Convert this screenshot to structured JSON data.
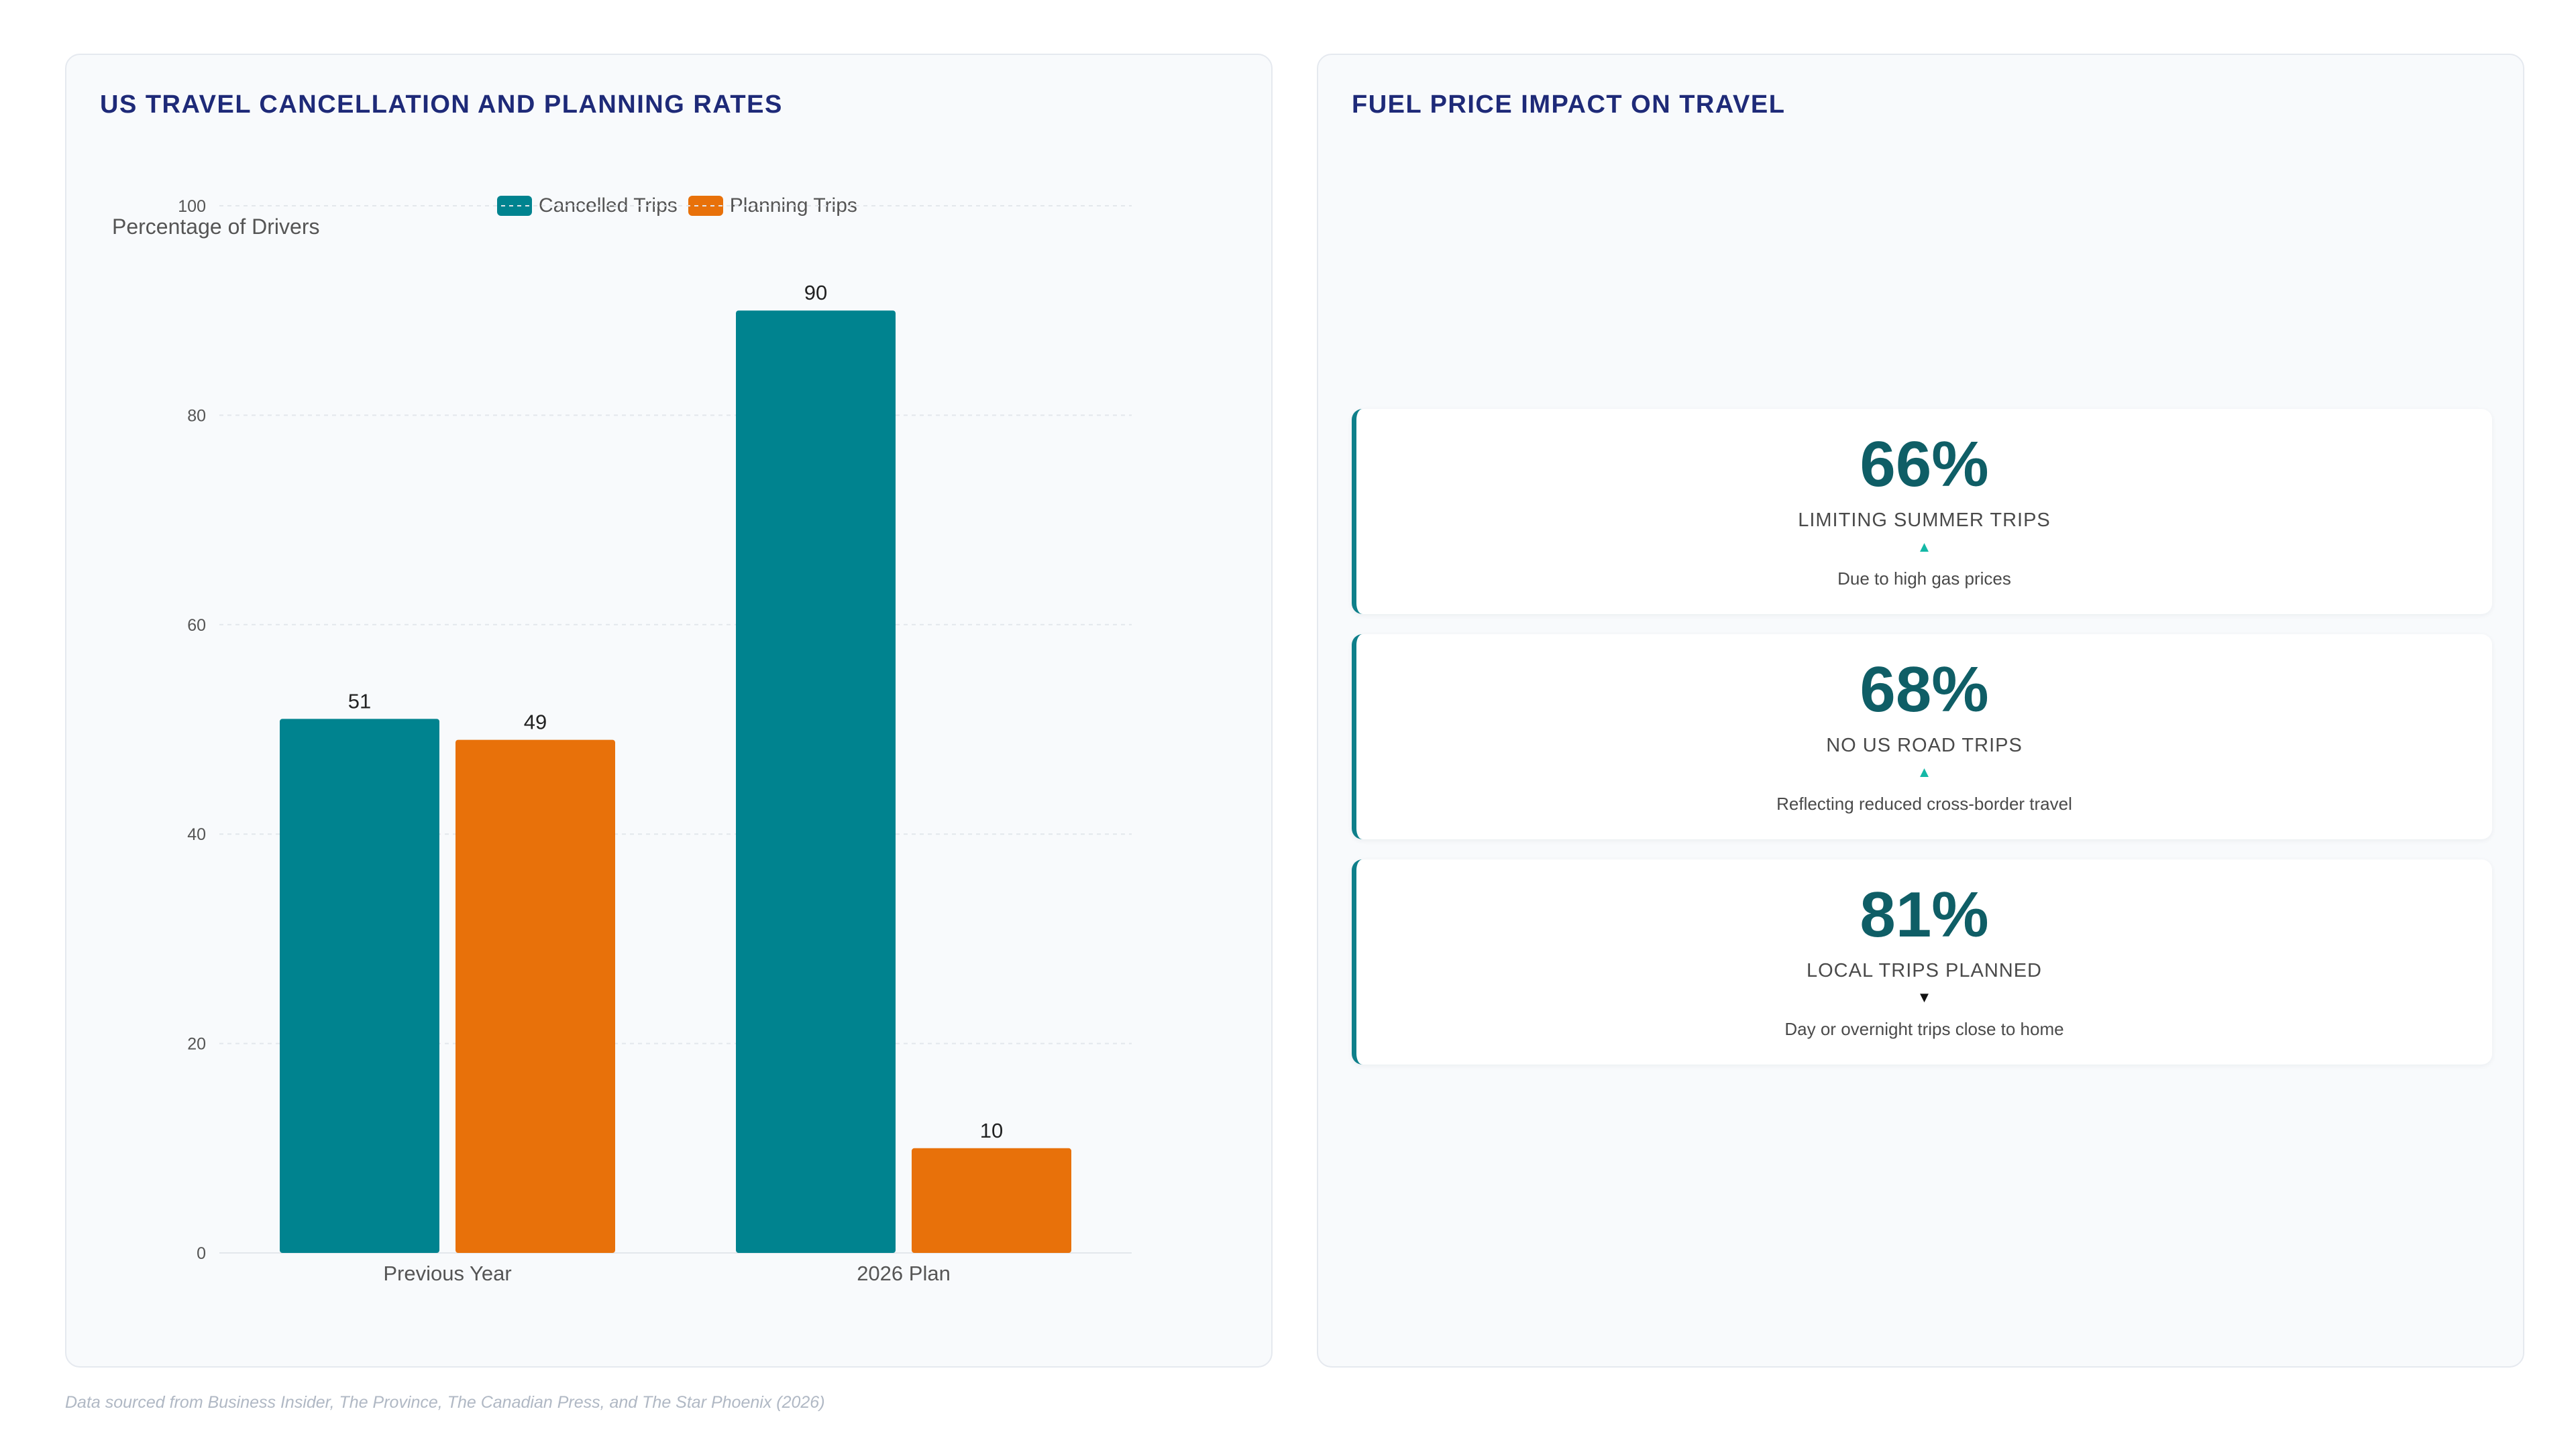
{
  "left_panel": {
    "title": "US TRAVEL CANCELLATION AND PLANNING RATES"
  },
  "right_panel": {
    "title": "FUEL PRICE IMPACT ON TRAVEL",
    "stats": [
      {
        "value": "66%",
        "label": "LIMITING SUMMER TRIPS",
        "arrow": "▲",
        "arrow_color": "#14b8a6",
        "note": "Due to high gas prices"
      },
      {
        "value": "68%",
        "label": "NO US ROAD TRIPS",
        "arrow": "▲",
        "arrow_color": "#14b8a6",
        "note": "Reflecting reduced cross-border travel"
      },
      {
        "value": "81%",
        "label": "LOCAL TRIPS PLANNED",
        "arrow": "▼",
        "arrow_color": "#111111",
        "note": "Day or overnight trips close to home"
      }
    ]
  },
  "chart_data": {
    "type": "bar",
    "title": "US TRAVEL CANCELLATION AND PLANNING RATES",
    "ylabel": "Percentage of Drivers",
    "xlabel": "",
    "categories": [
      "Previous Year",
      "2026 Plan"
    ],
    "series": [
      {
        "name": "Cancelled Trips",
        "values": [
          51,
          90
        ],
        "color": "#00838f"
      },
      {
        "name": "Planning Trips",
        "values": [
          49,
          10
        ],
        "color": "#e8710a"
      }
    ],
    "ylim": [
      0,
      100
    ],
    "yticks": [
      0,
      20,
      40,
      60,
      80,
      100
    ],
    "grid": true,
    "legend": "top-center"
  },
  "footnote": "Data sourced from Business Insider, The Province, The Canadian Press, and The Star Phoenix (2026)"
}
